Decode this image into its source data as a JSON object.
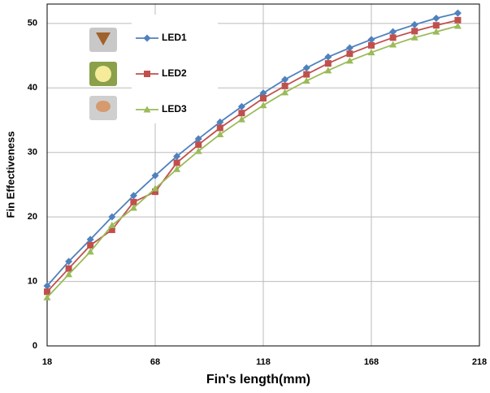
{
  "chart_data": {
    "type": "line",
    "x_label": "Fin's length(mm)",
    "y_label": "Fin Effectiveness",
    "x": [
      18,
      28,
      38,
      48,
      58,
      68,
      78,
      88,
      98,
      108,
      118,
      128,
      138,
      148,
      158,
      168,
      178,
      188,
      198,
      208
    ],
    "series": [
      {
        "name": "LED1",
        "color": "#4f81bd",
        "marker": "diamond",
        "values": [
          9.3,
          13.1,
          16.5,
          20.0,
          23.3,
          26.4,
          29.4,
          32.1,
          34.7,
          37.1,
          39.2,
          41.3,
          43.1,
          44.8,
          46.2,
          47.5,
          48.7,
          49.8,
          50.8,
          51.6
        ]
      },
      {
        "name": "LED2",
        "color": "#c0504d",
        "marker": "square",
        "values": [
          8.4,
          12.0,
          15.6,
          18.0,
          22.3,
          23.9,
          28.4,
          31.2,
          33.8,
          36.1,
          38.4,
          40.3,
          42.1,
          43.8,
          45.3,
          46.6,
          47.8,
          48.8,
          49.7,
          50.5
        ]
      },
      {
        "name": "LED3",
        "color": "#9bbb59",
        "marker": "triangle",
        "values": [
          7.5,
          11.1,
          14.6,
          18.7,
          21.4,
          24.4,
          27.4,
          30.2,
          32.8,
          35.1,
          37.3,
          39.3,
          41.1,
          42.7,
          44.2,
          45.5,
          46.7,
          47.8,
          48.7,
          49.6
        ]
      }
    ],
    "xlim": [
      18,
      218
    ],
    "xticks": [
      18,
      68,
      118,
      168,
      218
    ],
    "ylim": [
      0,
      53
    ],
    "yticks": [
      0,
      10,
      20,
      30,
      40,
      50
    ],
    "grid": true
  }
}
